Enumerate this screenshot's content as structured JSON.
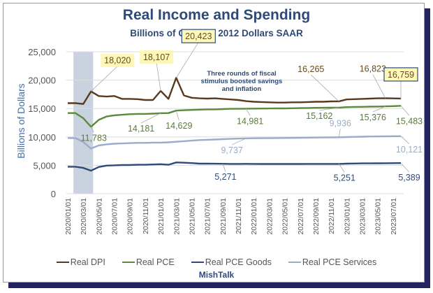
{
  "chart_data": {
    "type": "line",
    "title": "Real Income and Spending",
    "subtitle": "Billions of Chained 2012 Dollars SAAR",
    "xlabel": "",
    "ylabel": "Billions of Dollars",
    "ylim": [
      0,
      25000
    ],
    "yticks": [
      0,
      5000,
      10000,
      15000,
      20000,
      25000
    ],
    "ytick_labels": [
      "0",
      "5,000",
      "10,000",
      "15,000",
      "20,000",
      "25,000"
    ],
    "grid": true,
    "legend_position": "bottom",
    "x": [
      "2020/01",
      "2020/02",
      "2020/03",
      "2020/04",
      "2020/05",
      "2020/06",
      "2020/07",
      "2020/08",
      "2020/09",
      "2020/10",
      "2020/11",
      "2020/12",
      "2021/01",
      "2021/02",
      "2021/03",
      "2021/04",
      "2021/05",
      "2021/06",
      "2021/07",
      "2021/08",
      "2021/09",
      "2021/10",
      "2021/11",
      "2021/12",
      "2022/01",
      "2022/02",
      "2022/03",
      "2022/04",
      "2022/05",
      "2022/06",
      "2022/07",
      "2022/08",
      "2022/09",
      "2022/10",
      "2022/11",
      "2022/12",
      "2023/01",
      "2023/02",
      "2023/03",
      "2023/04",
      "2023/05",
      "2023/06",
      "2023/07",
      "2023/08"
    ],
    "xtick_labels": [
      "2020/01/01",
      "2020/03/01",
      "2020/05/01",
      "2020/07/01",
      "2020/09/01",
      "2020/11/01",
      "2021/01/01",
      "2021/03/01",
      "2021/05/01",
      "2021/07/01",
      "2021/09/01",
      "2021/11/01",
      "2022/01/01",
      "2022/03/01",
      "2022/05/01",
      "2022/07/01",
      "2022/09/01",
      "2022/11/01",
      "2023/01/01",
      "2023/03/01",
      "2023/05/01",
      "2023/07/01"
    ],
    "shaded_region": {
      "start": "2020/02",
      "end": "2020/04",
      "color": "#c9d3e0"
    },
    "series": [
      {
        "name": "Real DPI",
        "color": "#5a3a1e",
        "values": [
          15950,
          15950,
          15800,
          18020,
          17200,
          17100,
          17200,
          16700,
          16700,
          16650,
          16500,
          16500,
          18107,
          16700,
          20423,
          17300,
          16900,
          16800,
          16750,
          16800,
          16700,
          16600,
          16500,
          16300,
          16200,
          16150,
          16100,
          16050,
          16050,
          16100,
          16100,
          16150,
          16200,
          16200,
          16250,
          16265,
          16600,
          16650,
          16700,
          16750,
          16800,
          16823,
          16790,
          16759
        ]
      },
      {
        "name": "Real PCE",
        "color": "#5a8a3a",
        "values": [
          14200,
          14200,
          13300,
          11783,
          13000,
          13600,
          13800,
          13900,
          14000,
          14050,
          14050,
          14100,
          14181,
          14200,
          14629,
          14700,
          14750,
          14800,
          14850,
          14850,
          14900,
          14950,
          14950,
          14981,
          14990,
          15000,
          15010,
          15020,
          15030,
          15050,
          15080,
          15100,
          15120,
          15140,
          15150,
          15162,
          15250,
          15280,
          15300,
          15330,
          15350,
          15376,
          15420,
          15483
        ]
      },
      {
        "name": "Real PCE Goods",
        "color": "#2e4a7a",
        "values": [
          4750,
          4750,
          4550,
          4050,
          4700,
          4950,
          5000,
          5050,
          5050,
          5100,
          5100,
          5150,
          5200,
          5100,
          5500,
          5450,
          5400,
          5300,
          5300,
          5280,
          5271,
          5250,
          5250,
          5260,
          5250,
          5240,
          5240,
          5230,
          5230,
          5240,
          5240,
          5245,
          5250,
          5250,
          5251,
          5251,
          5300,
          5320,
          5340,
          5350,
          5360,
          5370,
          5380,
          5389
        ]
      },
      {
        "name": "Real PCE Services",
        "color": "#9aabcc",
        "values": [
          9800,
          9800,
          9100,
          7950,
          8500,
          8700,
          8800,
          8850,
          8900,
          8950,
          8950,
          9000,
          9000,
          9050,
          9150,
          9250,
          9350,
          9450,
          9500,
          9550,
          9600,
          9650,
          9700,
          9737,
          9760,
          9780,
          9790,
          9800,
          9810,
          9830,
          9850,
          9870,
          9890,
          9900,
          9920,
          9936,
          9980,
          10010,
          10040,
          10070,
          10090,
          10110,
          10121,
          10121
        ]
      }
    ],
    "data_labels": [
      {
        "series": "Real DPI",
        "x": "2020/04",
        "text": "18,020",
        "style": "highlight"
      },
      {
        "series": "Real DPI",
        "x": "2021/01",
        "text": "18,107",
        "style": "highlight"
      },
      {
        "series": "Real DPI",
        "x": "2021/03",
        "text": "20,423",
        "style": "boxed"
      },
      {
        "series": "Real DPI",
        "x": "2022/12",
        "text": "16,265",
        "style": "plain"
      },
      {
        "series": "Real DPI",
        "x": "2023/06",
        "text": "16,823",
        "style": "plain"
      },
      {
        "series": "Real DPI",
        "x": "2023/08",
        "text": "16,759",
        "style": "boxed"
      },
      {
        "series": "Real PCE",
        "x": "2020/04",
        "text": "11,783",
        "style": "plain"
      },
      {
        "series": "Real PCE",
        "x": "2021/01",
        "text": "14,181",
        "style": "plain"
      },
      {
        "series": "Real PCE",
        "x": "2021/03",
        "text": "14,629",
        "style": "plain"
      },
      {
        "series": "Real PCE",
        "x": "2021/12",
        "text": "14,981",
        "style": "plain"
      },
      {
        "series": "Real PCE",
        "x": "2022/12",
        "text": "15,162",
        "style": "plain"
      },
      {
        "series": "Real PCE",
        "x": "2023/06",
        "text": "15,376",
        "style": "plain"
      },
      {
        "series": "Real PCE",
        "x": "2023/08",
        "text": "15,483",
        "style": "plain"
      },
      {
        "series": "Real PCE Services",
        "x": "2021/12",
        "text": "9,737",
        "style": "plain"
      },
      {
        "series": "Real PCE Services",
        "x": "2022/12",
        "text": "9,936",
        "style": "plain"
      },
      {
        "series": "Real PCE Services",
        "x": "2023/08",
        "text": "10,121",
        "style": "plain"
      },
      {
        "series": "Real PCE Goods",
        "x": "2021/09",
        "text": "5,271",
        "style": "plain"
      },
      {
        "series": "Real PCE Goods",
        "x": "2022/12",
        "text": "5,251",
        "style": "plain"
      },
      {
        "series": "Real PCE Goods",
        "x": "2023/08",
        "text": "5,389",
        "style": "plain"
      }
    ],
    "annotation": [
      "Three rounds of fiscal",
      "stimulus boosted savings",
      "and inflation"
    ],
    "credit": "MishTalk"
  }
}
